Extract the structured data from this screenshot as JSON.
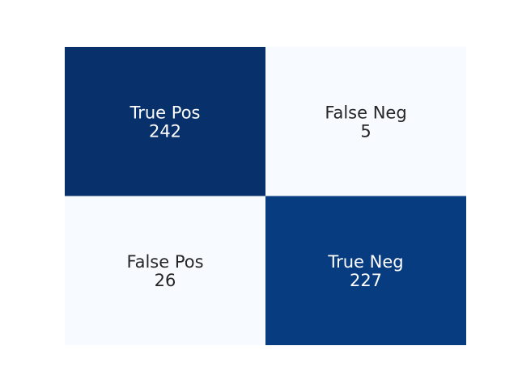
{
  "chart_data": {
    "type": "heatmap",
    "title": "",
    "colormap": "Blues",
    "colorbar": false,
    "rows": 2,
    "cols": 2,
    "cells": [
      {
        "row": 0,
        "col": 0,
        "label": "True Pos",
        "value": 242,
        "color": "#08306b",
        "text_color": "#ffffff"
      },
      {
        "row": 0,
        "col": 1,
        "label": "False Neg",
        "value": 5,
        "color": "#f7fbff",
        "text_color": "#262626"
      },
      {
        "row": 1,
        "col": 0,
        "label": "False Pos",
        "value": 26,
        "color": "#f7fbff",
        "text_color": "#262626"
      },
      {
        "row": 1,
        "col": 1,
        "label": "True Neg",
        "value": 227,
        "color": "#083c80",
        "text_color": "#ffffff"
      }
    ]
  }
}
